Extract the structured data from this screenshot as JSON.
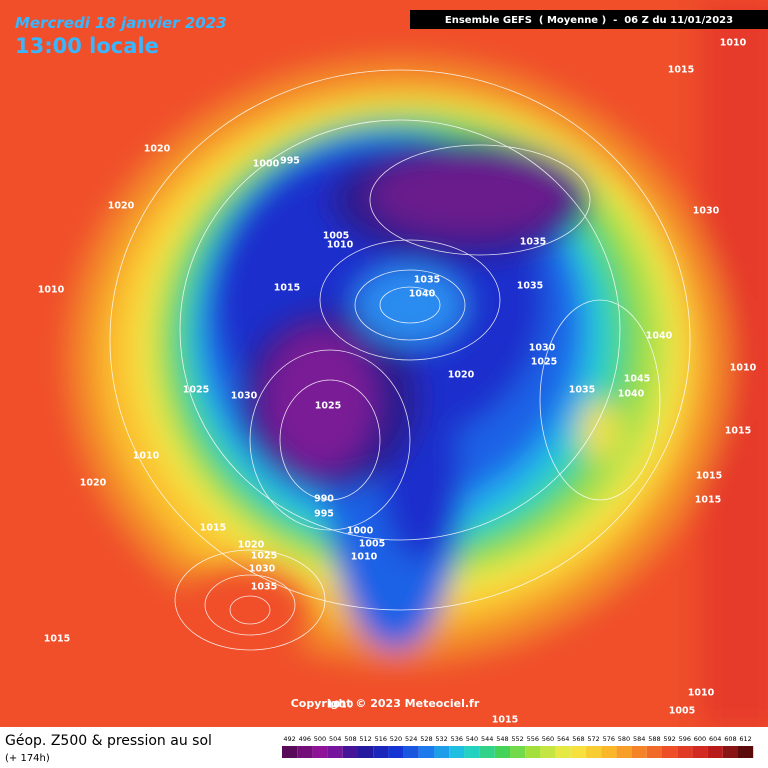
{
  "header": {
    "date": "Mercredi 18 janvier 2023",
    "time": "13:00 locale",
    "run": "Ensemble GEFS  ( Moyenne )  -  06 Z du 11/01/2023"
  },
  "copyright": "Copyright © 2023 Meteociel.fr",
  "footer": {
    "title": "Géop. Z500 & pression au sol",
    "lead": "(+ 174h)"
  },
  "scale": {
    "values": [
      492,
      496,
      500,
      504,
      508,
      512,
      516,
      520,
      524,
      528,
      532,
      536,
      540,
      544,
      548,
      552,
      556,
      560,
      564,
      568,
      572,
      576,
      580,
      584,
      588,
      592,
      596,
      600,
      604,
      608,
      612
    ]
  },
  "isobar_labels": [
    "1010",
    "1015",
    "1020",
    "1000",
    "995",
    "1020",
    "1030",
    "1005",
    "1010",
    "1035",
    "1015",
    "1035",
    "1040",
    "1035",
    "1010",
    "1040",
    "1030",
    "1025",
    "1020",
    "1010",
    "1045",
    "1025",
    "1030",
    "1035",
    "1040",
    "1025",
    "1015",
    "1010",
    "1015",
    "1020",
    "990",
    "1015",
    "995",
    "1015",
    "1000",
    "1020",
    "1005",
    "1025",
    "1010",
    "1030",
    "1035",
    "1015",
    "1010",
    "1010",
    "1005",
    "1015"
  ]
}
